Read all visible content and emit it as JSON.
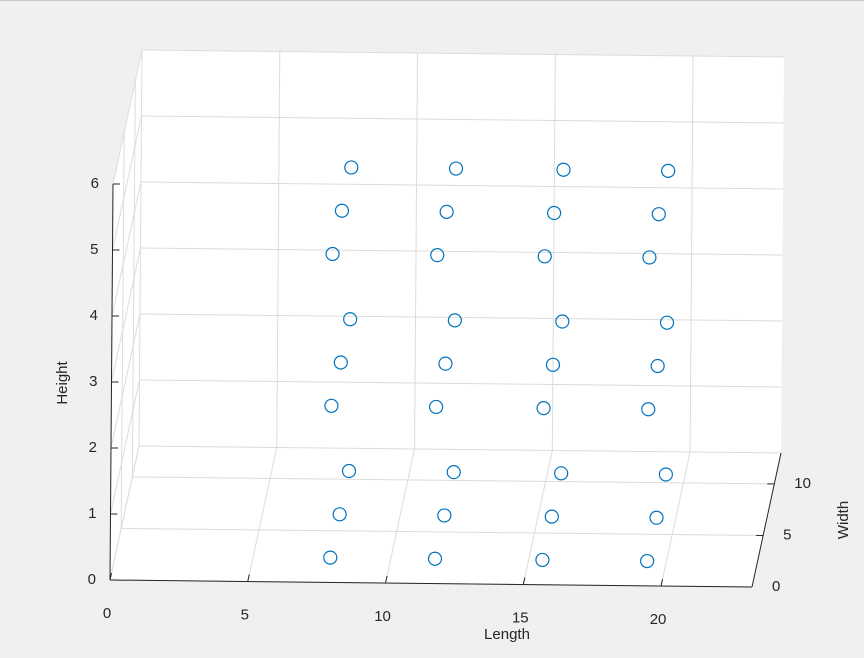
{
  "chart_data": {
    "type": "scatter3",
    "xlabel": "Length",
    "ylabel": "Width",
    "zlabel": "Height",
    "x": [
      7.8,
      11.6,
      15.5,
      19.3,
      7.8,
      11.6,
      15.5,
      19.3,
      7.8,
      11.6,
      15.5,
      19.3,
      7.8,
      11.6,
      15.5,
      19.3,
      7.8,
      11.6,
      15.5,
      19.3,
      7.8,
      11.6,
      15.5,
      19.3,
      7.8,
      11.6,
      15.5,
      19.3,
      7.8,
      11.6,
      15.5,
      19.3,
      7.8,
      11.6,
      15.5,
      19.3
    ],
    "y": [
      2.4,
      2.4,
      2.4,
      2.4,
      6.6,
      6.6,
      6.6,
      6.6,
      10.8,
      10.8,
      10.8,
      10.8,
      2.4,
      2.4,
      2.4,
      2.4,
      6.6,
      6.6,
      6.6,
      6.6,
      10.8,
      10.8,
      10.8,
      10.8,
      2.4,
      2.4,
      2.4,
      2.4,
      6.6,
      6.6,
      6.6,
      6.6,
      10.8,
      10.8,
      10.8,
      10.8
    ],
    "z": [
      0,
      0,
      0,
      0,
      0,
      0,
      0,
      0,
      0,
      0,
      0,
      0,
      2.3,
      2.3,
      2.3,
      2.3,
      2.3,
      2.3,
      2.3,
      2.3,
      2.3,
      2.3,
      2.3,
      2.3,
      4.6,
      4.6,
      4.6,
      4.6,
      4.6,
      4.6,
      4.6,
      4.6,
      4.6,
      4.6,
      4.6,
      4.6
    ],
    "color": "#0072bd",
    "xlim": [
      0,
      23.3
    ],
    "ylim": [
      0,
      13
    ],
    "zlim": [
      0,
      6
    ],
    "xticks": [
      0,
      5,
      10,
      15,
      20
    ],
    "yticks": [
      0,
      5,
      10
    ],
    "zticks": [
      0,
      1,
      2,
      3,
      4,
      5,
      6
    ],
    "grid": true
  }
}
